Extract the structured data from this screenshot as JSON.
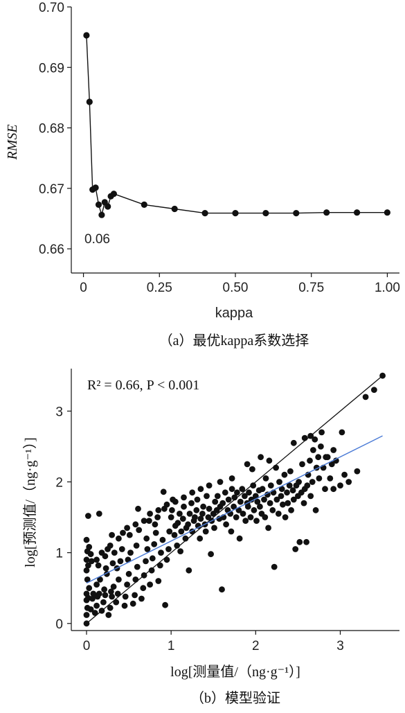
{
  "chart_data": [
    {
      "type": "line",
      "xlabel": "kappa",
      "ylabel": "RMSE",
      "caption": "（a）最优kappa系数选择",
      "annotation": "0.06",
      "xlim": [
        -0.04,
        1.04
      ],
      "ylim": [
        0.656,
        0.7
      ],
      "xticks": [
        "0",
        "0.25",
        "0.50",
        "0.75",
        "1.00"
      ],
      "yticks": [
        "0.66",
        "0.67",
        "0.68",
        "0.69",
        "0.70"
      ],
      "x": [
        0.01,
        0.02,
        0.03,
        0.04,
        0.05,
        0.06,
        0.07,
        0.08,
        0.09,
        0.1,
        0.2,
        0.3,
        0.4,
        0.5,
        0.6,
        0.7,
        0.8,
        0.9,
        1.0
      ],
      "y": [
        0.6953,
        0.6843,
        0.6698,
        0.6701,
        0.6673,
        0.6656,
        0.6677,
        0.667,
        0.6687,
        0.6691,
        0.6673,
        0.6666,
        0.6659,
        0.6659,
        0.6659,
        0.6659,
        0.666,
        0.666,
        0.666
      ]
    },
    {
      "type": "scatter",
      "xlabel": "log[测量值/（ng·g⁻¹）]",
      "ylabel": "log[预测值/（ng·g⁻¹）]",
      "caption": "（b）模型验证",
      "stats_label": "R² = 0.66, P < 0.001",
      "xlim": [
        -0.18,
        3.7
      ],
      "ylim": [
        -0.1,
        3.6
      ],
      "xticks": [
        "0",
        "1",
        "2",
        "3"
      ],
      "yticks": [
        "0",
        "1",
        "2",
        "3"
      ],
      "one_to_one_line": [
        [
          0,
          0
        ],
        [
          3.5,
          3.5
        ]
      ],
      "fit_line": [
        [
          0,
          0.57
        ],
        [
          3.5,
          2.65
        ]
      ],
      "fit_line_color": "#4b7bd6",
      "points": [
        [
          0.0,
          0.0
        ],
        [
          0.0,
          0.12
        ],
        [
          0.01,
          0.22
        ],
        [
          0.0,
          0.33
        ],
        [
          0.02,
          0.36
        ],
        [
          0.0,
          0.42
        ],
        [
          0.03,
          0.5
        ],
        [
          0.01,
          0.62
        ],
        [
          0.0,
          0.75
        ],
        [
          0.02,
          0.82
        ],
        [
          0.0,
          0.9
        ],
        [
          0.01,
          1.02
        ],
        [
          0.03,
          1.08
        ],
        [
          0.0,
          1.18
        ],
        [
          0.02,
          1.52
        ],
        [
          0.05,
          0.2
        ],
        [
          0.07,
          0.35
        ],
        [
          0.08,
          0.42
        ],
        [
          0.06,
          0.88
        ],
        [
          0.05,
          0.98
        ],
        [
          0.1,
          0.15
        ],
        [
          0.12,
          0.25
        ],
        [
          0.13,
          0.38
        ],
        [
          0.15,
          0.42
        ],
        [
          0.12,
          0.55
        ],
        [
          0.14,
          0.82
        ],
        [
          0.12,
          0.9
        ],
        [
          0.16,
          0.62
        ],
        [
          0.15,
          1.55
        ],
        [
          0.18,
          0.18
        ],
        [
          0.2,
          0.3
        ],
        [
          0.22,
          0.4
        ],
        [
          0.21,
          0.48
        ],
        [
          0.24,
          0.7
        ],
        [
          0.23,
          0.78
        ],
        [
          0.22,
          0.95
        ],
        [
          0.25,
          1.05
        ],
        [
          0.26,
          0.12
        ],
        [
          0.28,
          0.22
        ],
        [
          0.3,
          0.38
        ],
        [
          0.29,
          0.45
        ],
        [
          0.32,
          0.52
        ],
        [
          0.31,
          0.85
        ],
        [
          0.33,
          1.0
        ],
        [
          0.3,
          1.25
        ],
        [
          0.35,
          0.3
        ],
        [
          0.37,
          0.42
        ],
        [
          0.38,
          0.62
        ],
        [
          0.36,
          0.78
        ],
        [
          0.4,
          0.88
        ],
        [
          0.42,
          1.05
        ],
        [
          0.43,
          1.28
        ],
        [
          0.45,
          0.25
        ],
        [
          0.46,
          0.38
        ],
        [
          0.48,
          0.55
        ],
        [
          0.5,
          0.7
        ],
        [
          0.49,
          0.9
        ],
        [
          0.52,
          1.0
        ],
        [
          0.51,
          1.25
        ],
        [
          0.55,
          0.28
        ],
        [
          0.57,
          0.4
        ],
        [
          0.58,
          0.62
        ],
        [
          0.6,
          0.8
        ],
        [
          0.59,
          1.1
        ],
        [
          0.62,
          1.32
        ],
        [
          0.61,
          1.62
        ],
        [
          0.65,
          0.35
        ],
        [
          0.67,
          0.5
        ],
        [
          0.68,
          0.68
        ],
        [
          0.7,
          0.88
        ],
        [
          0.72,
          1.05
        ],
        [
          0.71,
          1.2
        ],
        [
          0.74,
          1.45
        ],
        [
          0.75,
          0.55
        ],
        [
          0.77,
          0.75
        ],
        [
          0.78,
          0.92
        ],
        [
          0.8,
          1.12
        ],
        [
          0.82,
          1.28
        ],
        [
          0.81,
          1.4
        ],
        [
          0.84,
          1.5
        ],
        [
          0.85,
          0.6
        ],
        [
          0.87,
          0.82
        ],
        [
          0.88,
          1.0
        ],
        [
          0.9,
          1.18
        ],
        [
          0.92,
          1.62
        ],
        [
          0.91,
          1.86
        ],
        [
          0.93,
          0.26
        ],
        [
          0.95,
          0.9
        ],
        [
          0.97,
          1.05
        ],
        [
          0.98,
          1.3
        ],
        [
          1.0,
          1.5
        ],
        [
          1.02,
          1.75
        ],
        [
          1.01,
          1.6
        ],
        [
          1.04,
          1.25
        ],
        [
          1.05,
          1.38
        ],
        [
          1.07,
          1.1
        ],
        [
          1.08,
          1.42
        ],
        [
          1.1,
          1.55
        ],
        [
          1.12,
          1.3
        ],
        [
          1.11,
          1.02
        ],
        [
          1.14,
          1.48
        ],
        [
          1.15,
          1.65
        ],
        [
          1.17,
          1.2
        ],
        [
          1.18,
          1.35
        ],
        [
          1.2,
          1.4
        ],
        [
          1.22,
          1.55
        ],
        [
          1.21,
          0.75
        ],
        [
          1.24,
          1.7
        ],
        [
          1.25,
          1.3
        ],
        [
          1.27,
          1.45
        ],
        [
          1.28,
          1.5
        ],
        [
          1.3,
          1.6
        ],
        [
          1.32,
          1.38
        ],
        [
          1.31,
          1.75
        ],
        [
          1.34,
          1.2
        ],
        [
          1.35,
          1.48
        ],
        [
          1.37,
          1.55
        ],
        [
          1.38,
          1.65
        ],
        [
          1.4,
          1.4
        ],
        [
          1.42,
          1.8
        ],
        [
          1.41,
          1.3
        ],
        [
          1.44,
          1.5
        ],
        [
          1.45,
          1.62
        ],
        [
          1.47,
          0.98
        ],
        [
          1.48,
          1.45
        ],
        [
          1.5,
          1.55
        ],
        [
          1.52,
          1.72
        ],
        [
          1.51,
          1.35
        ],
        [
          1.54,
          1.6
        ],
        [
          1.55,
          1.8
        ],
        [
          1.57,
          1.48
        ],
        [
          1.58,
          1.65
        ],
        [
          1.6,
          0.48
        ],
        [
          1.62,
          1.5
        ],
        [
          1.61,
          1.7
        ],
        [
          1.64,
          1.85
        ],
        [
          1.65,
          1.4
        ],
        [
          1.67,
          1.6
        ],
        [
          1.68,
          1.75
        ],
        [
          1.7,
          1.55
        ],
        [
          1.72,
          1.9
        ],
        [
          1.71,
          1.3
        ],
        [
          1.74,
          1.65
        ],
        [
          1.75,
          1.78
        ],
        [
          1.77,
          1.5
        ],
        [
          1.78,
          1.85
        ],
        [
          1.8,
          1.6
        ],
        [
          1.82,
          1.72
        ],
        [
          1.81,
          1.2
        ],
        [
          1.84,
          1.9
        ],
        [
          1.85,
          1.55
        ],
        [
          1.87,
          1.8
        ],
        [
          1.88,
          1.45
        ],
        [
          1.9,
          1.7
        ],
        [
          1.92,
          1.85
        ],
        [
          1.91,
          1.65
        ],
        [
          1.94,
          1.5
        ],
        [
          1.95,
          1.75
        ],
        [
          1.97,
          1.95
        ],
        [
          1.98,
          1.6
        ],
        [
          2.0,
          1.8
        ],
        [
          2.02,
          1.72
        ],
        [
          2.01,
          1.45
        ],
        [
          2.04,
          1.88
        ],
        [
          2.05,
          1.65
        ],
        [
          2.07,
          1.55
        ],
        [
          2.08,
          1.9
        ],
        [
          2.1,
          1.75
        ],
        [
          2.12,
          2.05
        ],
        [
          2.11,
          1.5
        ],
        [
          2.14,
          1.82
        ],
        [
          2.15,
          1.35
        ],
        [
          2.17,
          1.7
        ],
        [
          2.18,
          1.95
        ],
        [
          2.2,
          1.6
        ],
        [
          2.22,
          0.8
        ],
        [
          2.21,
          1.85
        ],
        [
          2.24,
          2.2
        ],
        [
          2.25,
          1.75
        ],
        [
          2.27,
          1.55
        ],
        [
          2.28,
          2.0
        ],
        [
          2.3,
          1.8
        ],
        [
          2.32,
          1.68
        ],
        [
          2.31,
          1.9
        ],
        [
          2.34,
          2.1
        ],
        [
          2.35,
          1.5
        ],
        [
          2.37,
          1.85
        ],
        [
          2.38,
          1.7
        ],
        [
          2.4,
          1.95
        ],
        [
          2.42,
          1.6
        ],
        [
          2.41,
          2.15
        ],
        [
          2.44,
          1.88
        ],
        [
          2.45,
          1.75
        ],
        [
          2.47,
          1.05
        ],
        [
          2.48,
          1.95
        ],
        [
          2.5,
          1.8
        ],
        [
          2.52,
          1.15
        ],
        [
          2.51,
          2.0
        ],
        [
          2.54,
          1.85
        ],
        [
          2.55,
          2.25
        ],
        [
          2.57,
          1.7
        ],
        [
          2.58,
          1.9
        ],
        [
          2.6,
          1.15
        ],
        [
          2.62,
          2.1
        ],
        [
          2.61,
          1.95
        ],
        [
          2.64,
          2.3
        ],
        [
          2.65,
          1.8
        ],
        [
          2.67,
          2.0
        ],
        [
          2.68,
          2.45
        ],
        [
          2.7,
          2.6
        ],
        [
          2.72,
          2.2
        ],
        [
          2.71,
          1.6
        ],
        [
          2.74,
          2.35
        ],
        [
          2.75,
          2.05
        ],
        [
          2.77,
          2.5
        ],
        [
          2.8,
          2.2
        ],
        [
          2.82,
          1.9
        ],
        [
          2.85,
          2.35
        ],
        [
          2.88,
          2.05
        ],
        [
          2.9,
          2.25
        ],
        [
          2.92,
          1.9
        ],
        [
          2.95,
          2.3
        ],
        [
          3.0,
          1.95
        ],
        [
          3.05,
          2.1
        ],
        [
          3.1,
          2.0
        ],
        [
          3.2,
          2.15
        ],
        [
          3.3,
          3.2
        ],
        [
          3.4,
          3.3
        ],
        [
          3.5,
          3.5
        ],
        [
          2.45,
          2.55
        ],
        [
          2.58,
          2.62
        ],
        [
          2.65,
          2.65
        ],
        [
          2.78,
          2.7
        ],
        [
          2.83,
          2.35
        ],
        [
          2.92,
          2.45
        ],
        [
          3.02,
          2.7
        ],
        [
          1.9,
          2.25
        ],
        [
          1.96,
          2.18
        ],
        [
          2.06,
          2.35
        ],
        [
          2.16,
          2.3
        ],
        [
          1.72,
          2.05
        ],
        [
          1.58,
          2.0
        ],
        [
          1.45,
          1.95
        ],
        [
          1.35,
          1.9
        ],
        [
          1.25,
          1.85
        ],
        [
          1.15,
          1.78
        ],
        [
          1.05,
          1.72
        ],
        [
          0.95,
          1.68
        ],
        [
          0.85,
          1.6
        ],
        [
          0.75,
          1.55
        ],
        [
          0.68,
          1.45
        ],
        [
          0.58,
          1.4
        ],
        [
          0.48,
          1.35
        ],
        [
          0.38,
          1.2
        ],
        [
          0.28,
          1.1
        ],
        [
          0.18,
          1.0
        ]
      ]
    }
  ]
}
